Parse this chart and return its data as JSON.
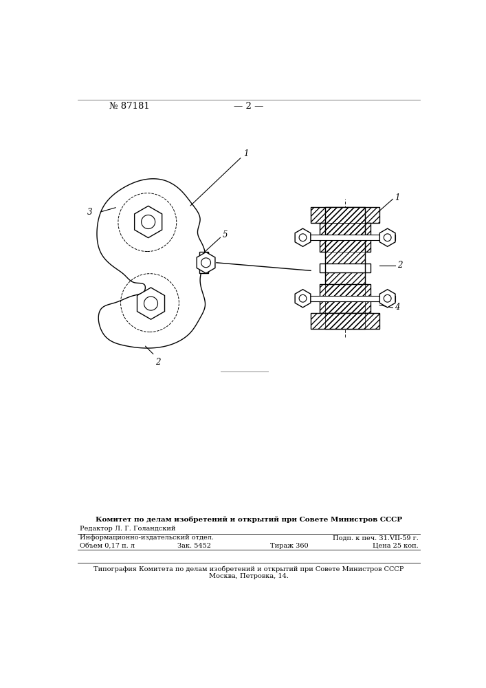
{
  "bg_color": "#ffffff",
  "line_color": "#000000",
  "page_number_text": "№ 87181",
  "page_center_text": "— 2 —",
  "footer": {
    "committee_text": "Комитет по делам изобретений и открытий при Совете Министров СССР",
    "editor_text": "Редактор Л. Г. Голандский",
    "info_line1": "Информационно-издательский отдел.",
    "info_right1": "Подп. к печ. 31.VII-59 г.",
    "info_line2": "Объем 0,17 п. л",
    "info_center2": "Зак. 5452",
    "info_mid2": "Тираж 360",
    "info_right2": "Цена 25 коп.",
    "typography_line1": "Типография Комитета по делам изобретений и открытий при Совете Министров СССР",
    "typography_line2": "Москва, Петровка, 14."
  }
}
